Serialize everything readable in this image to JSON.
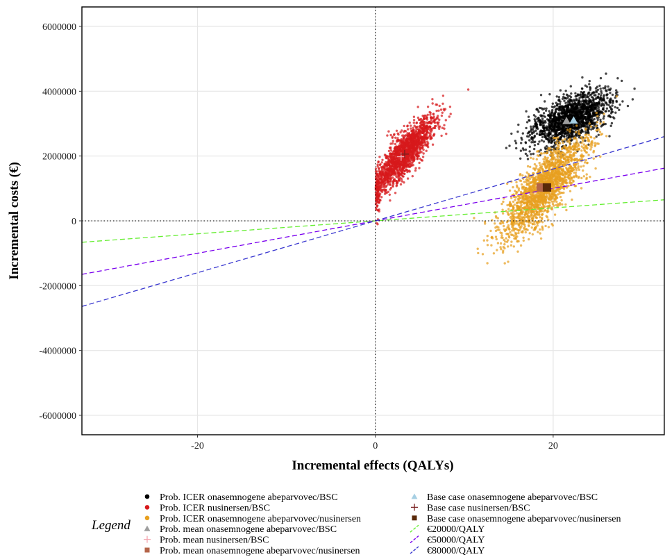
{
  "chart_data": {
    "type": "scatter",
    "xlabel": "Incremental effects (QALYs)",
    "ylabel": "Incremental costs (€)",
    "xlim": [
      -33,
      32.5
    ],
    "ylim": [
      -6600000,
      6600000
    ],
    "x_ticks": [
      -20,
      0,
      20
    ],
    "y_ticks": [
      6000000,
      4000000,
      2000000,
      0,
      -2000000,
      -4000000,
      -6000000
    ],
    "x_tick_labels": [
      "-20",
      "0",
      "20"
    ],
    "y_tick_labels": [
      "6000000",
      "4000000",
      "2000000",
      "0",
      "-2000000",
      "-4000000",
      "-6000000"
    ],
    "grid": true,
    "reference_lines": {
      "x": 0,
      "y": 0,
      "style": "dotted"
    },
    "legend": {
      "title": "Legend",
      "position": "bottom",
      "entries": [
        {
          "label": "Prob. ICER onasemnogene abeparvovec/BSC",
          "color": "#000000",
          "marker": "circle"
        },
        {
          "label": "Prob. ICER nusinersen/BSC",
          "color": "#d7191c",
          "marker": "circle"
        },
        {
          "label": "Prob. ICER onasemnogene abeparvovec/nusinersen",
          "color": "#e8a020",
          "marker": "circle"
        },
        {
          "label": "Prob. mean onasemnogene abeparvovec/BSC",
          "color": "#9e9e9e",
          "marker": "triangle"
        },
        {
          "label": "Prob. mean nusinersen/BSC",
          "color": "#f4a6b0",
          "marker": "plus"
        },
        {
          "label": "Prob. mean onasemnogene abeparvovec/nusinersen",
          "color": "#b5654a",
          "marker": "square"
        },
        {
          "label": "Base case onasemnogene abeparvovec/BSC",
          "color": "#a6cfe3",
          "marker": "triangle"
        },
        {
          "label": "Base case nusinersen/BSC",
          "color": "#7a1f1f",
          "marker": "plus"
        },
        {
          "label": "Base case onasemnogene abeparvovec/nusinersen",
          "color": "#5a2a0a",
          "marker": "square"
        },
        {
          "label": "€20000/QALY",
          "color": "#66ee33",
          "marker": "dashed-line"
        },
        {
          "label": "€50000/QALY",
          "color": "#7a00ee",
          "marker": "dashed-line"
        },
        {
          "label": "€80000/QALY",
          "color": "#3a38d0",
          "marker": "dashed-line"
        }
      ]
    },
    "series": [
      {
        "name": "Prob. ICER onasemnogene abeparvovec/BSC",
        "kind": "cloud",
        "color": "#000000",
        "mean": [
          22.0,
          3150000
        ],
        "sd": [
          2.2,
          420000
        ],
        "corr": 0.55,
        "count": 1600
      },
      {
        "name": "Prob. ICER nusinersen/BSC",
        "kind": "cloud",
        "color": "#d7191c",
        "mean": [
          3.2,
          2050000
        ],
        "sd": [
          1.9,
          620000
        ],
        "corr": 0.86,
        "count": 1700
      },
      {
        "name": "Prob. ICER onasemnogene abeparvovec/nusinersen",
        "kind": "cloud",
        "color": "#e8a020",
        "mean": [
          19.0,
          1050000
        ],
        "sd": [
          2.4,
          780000
        ],
        "corr": 0.8,
        "count": 1900
      }
    ],
    "points": [
      {
        "name": "Prob. mean onasemnogene abeparvovec/BSC",
        "x": 21.5,
        "y": 3080000,
        "color": "#9e9e9e",
        "marker": "triangle"
      },
      {
        "name": "Base case onasemnogene abeparvovec/BSC",
        "x": 22.3,
        "y": 3100000,
        "color": "#a6cfe3",
        "marker": "triangle"
      },
      {
        "name": "Prob. mean nusinersen/BSC",
        "x": 2.9,
        "y": 1980000,
        "color": "#f4a6b0",
        "marker": "plus"
      },
      {
        "name": "Base case nusinersen/BSC",
        "x": 3.3,
        "y": 2060000,
        "color": "#7a1f1f",
        "marker": "plus"
      },
      {
        "name": "Prob. mean onasemnogene abeparvovec/nusinersen",
        "x": 18.6,
        "y": 1030000,
        "color": "#b5654a",
        "marker": "square"
      },
      {
        "name": "Base case onasemnogene abeparvovec/nusinersen",
        "x": 19.3,
        "y": 1030000,
        "color": "#5a2a0a",
        "marker": "square"
      }
    ],
    "thresholds": [
      {
        "name": "€20000/QALY",
        "slope": 20000,
        "color": "#66ee33"
      },
      {
        "name": "€50000/QALY",
        "slope": 50000,
        "color": "#7a00ee"
      },
      {
        "name": "€80000/QALY",
        "slope": 80000,
        "color": "#3a38d0"
      }
    ]
  }
}
